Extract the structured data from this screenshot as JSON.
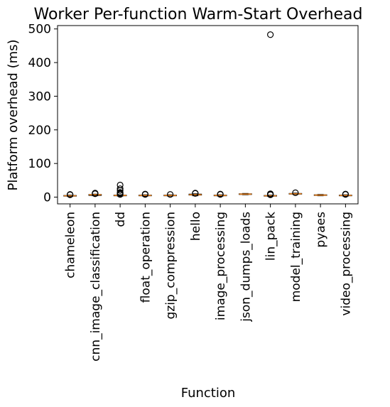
{
  "chart_data": {
    "type": "box",
    "title": "Worker Per-function Warm-Start Overhead",
    "xlabel": "Function",
    "ylabel": "Platform overhead (ms)",
    "ylim": [
      -20,
      510
    ],
    "yticks": [
      0,
      100,
      200,
      300,
      400,
      500
    ],
    "grid": false,
    "categories": [
      "chameleon",
      "cnn_image_classification",
      "dd",
      "float_operation",
      "gzip_compression",
      "hello",
      "image_processing",
      "json_dumps_loads",
      "lin_pack",
      "model_training",
      "pyaes",
      "video_processing"
    ],
    "boxes": [
      {
        "category": "chameleon",
        "whislo": 2,
        "q1": 3,
        "median": 4,
        "q3": 5,
        "whishi": 6,
        "fliers": [
          7,
          8
        ]
      },
      {
        "category": "cnn_image_classification",
        "whislo": 4,
        "q1": 5,
        "median": 7,
        "q3": 8,
        "whishi": 9,
        "fliers": [
          10,
          11,
          12
        ]
      },
      {
        "category": "dd",
        "whislo": 3,
        "q1": 4,
        "median": 5,
        "q3": 6,
        "whishi": 7,
        "fliers": [
          8,
          10,
          12,
          14,
          20,
          25,
          36
        ]
      },
      {
        "category": "float_operation",
        "whislo": 3,
        "q1": 4,
        "median": 5,
        "q3": 6,
        "whishi": 7,
        "fliers": [
          8,
          9
        ]
      },
      {
        "category": "gzip_compression",
        "whislo": 3,
        "q1": 4,
        "median": 5,
        "q3": 6,
        "whishi": 7,
        "fliers": [
          8
        ]
      },
      {
        "category": "hello",
        "whislo": 4,
        "q1": 6,
        "median": 7,
        "q3": 9,
        "whishi": 10,
        "fliers": [
          11,
          12
        ]
      },
      {
        "category": "image_processing",
        "whislo": 3,
        "q1": 4,
        "median": 5,
        "q3": 6,
        "whishi": 7,
        "fliers": [
          8,
          9
        ]
      },
      {
        "category": "json_dumps_loads",
        "whislo": 7,
        "q1": 8,
        "median": 9,
        "q3": 10,
        "whishi": 11,
        "fliers": []
      },
      {
        "category": "lin_pack",
        "whislo": 2,
        "q1": 3,
        "median": 4,
        "q3": 5,
        "whishi": 6,
        "fliers": [
          7,
          8,
          9,
          10,
          483
        ]
      },
      {
        "category": "model_training",
        "whislo": 8,
        "q1": 9,
        "median": 10,
        "q3": 11,
        "whishi": 12,
        "fliers": [
          13
        ]
      },
      {
        "category": "pyaes",
        "whislo": 4,
        "q1": 5,
        "median": 6,
        "q3": 7,
        "whishi": 8,
        "fliers": []
      },
      {
        "category": "video_processing",
        "whislo": 3,
        "q1": 4,
        "median": 5,
        "q3": 6,
        "whishi": 7,
        "fliers": [
          8,
          9
        ]
      }
    ],
    "median_color": "#e07b1a",
    "box_color": "#000000"
  }
}
